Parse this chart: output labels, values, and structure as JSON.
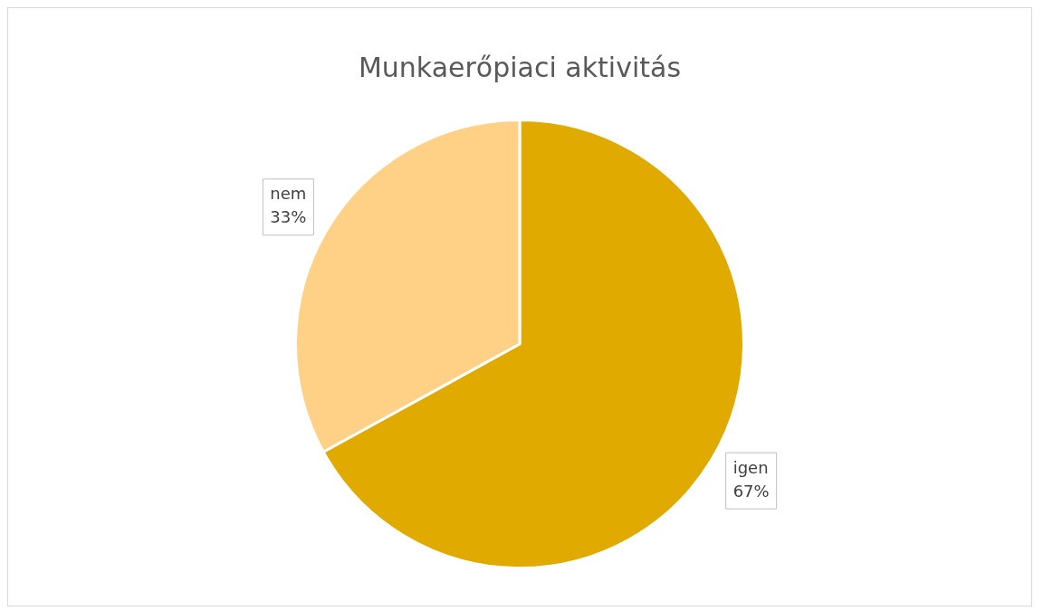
{
  "chart_data": {
    "type": "pie",
    "title": "Munkaerőpiaci aktivitás",
    "categories": [
      "igen",
      "nem"
    ],
    "values": [
      67,
      33
    ],
    "value_labels": [
      "67%",
      "33%"
    ],
    "colors": [
      "#e0aa00",
      "#fed186"
    ]
  }
}
